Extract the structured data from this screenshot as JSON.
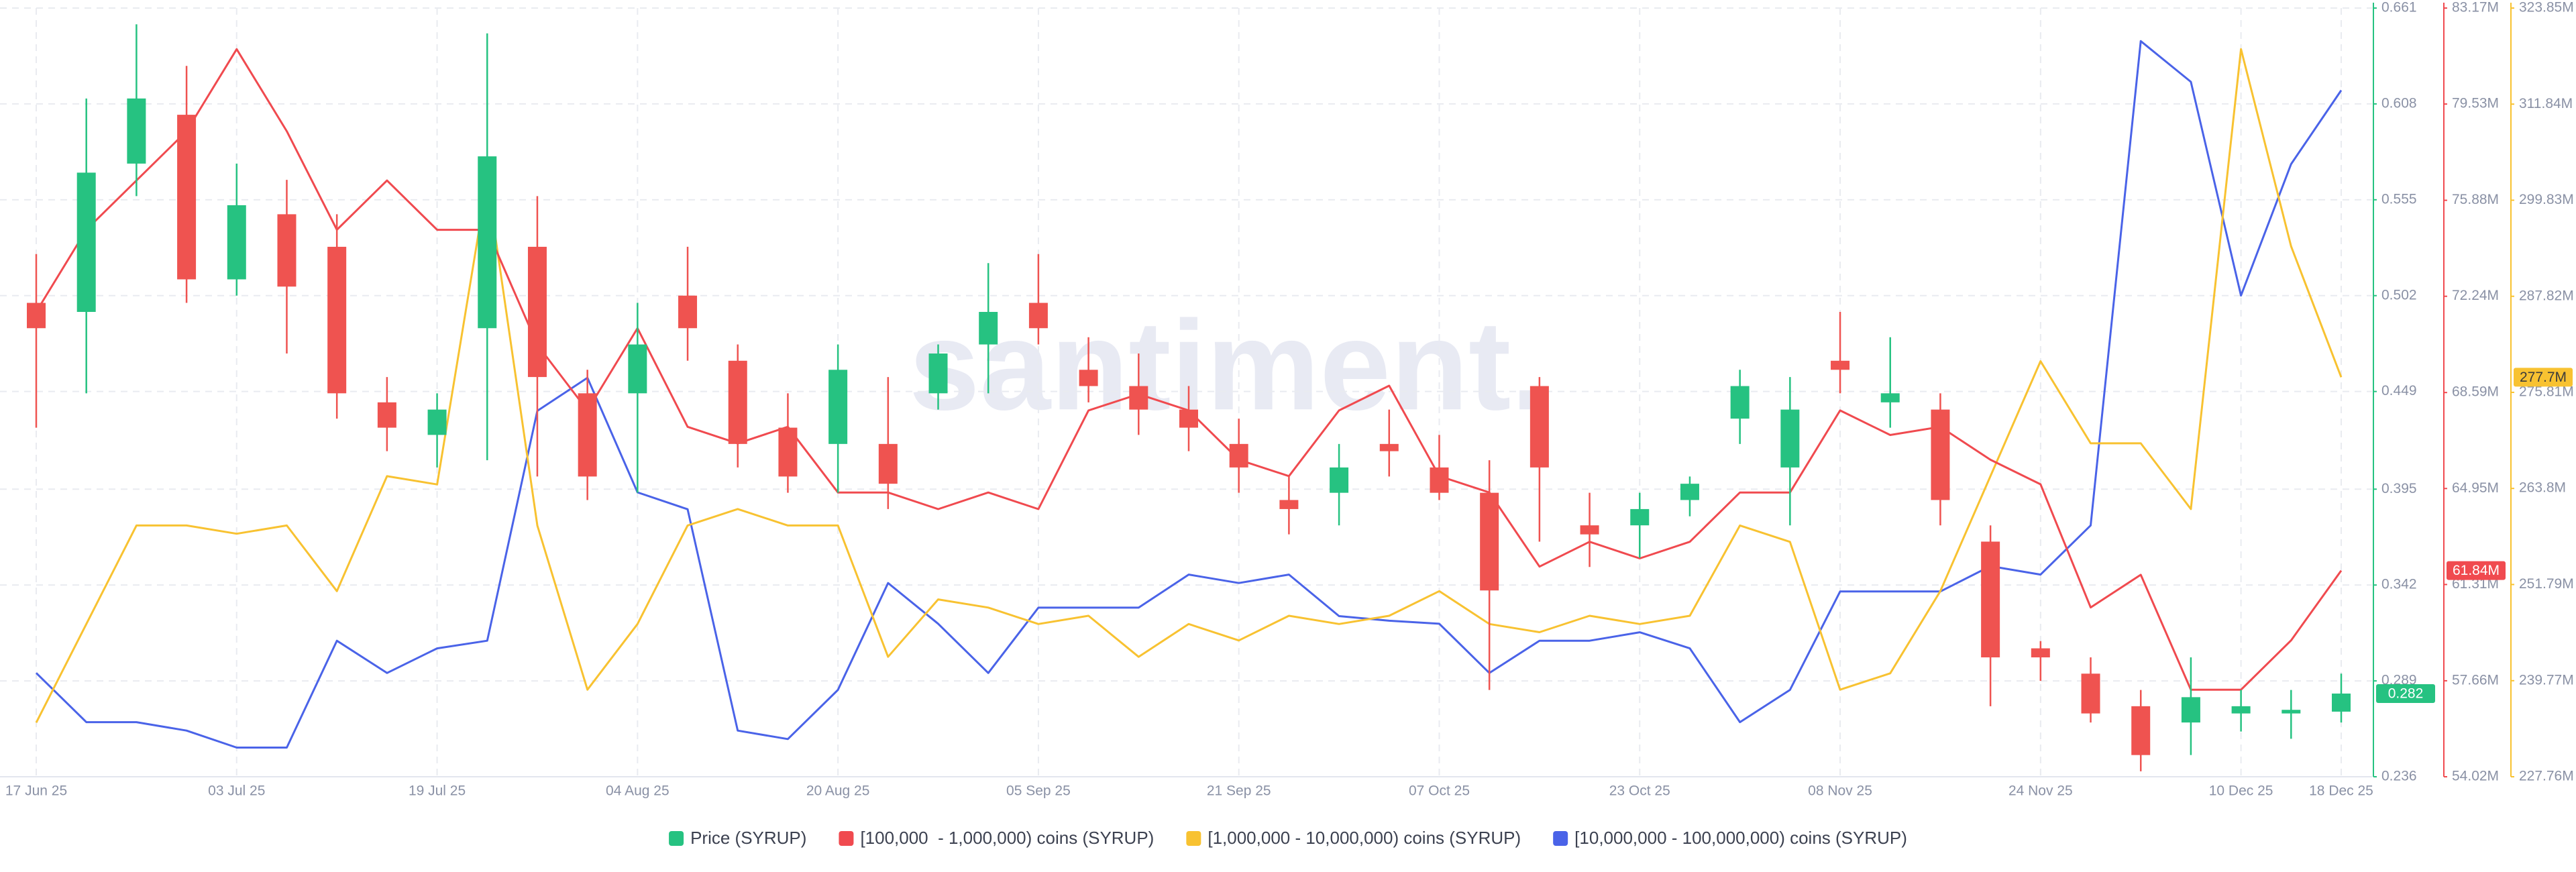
{
  "chart_data": {
    "type": "candlestick",
    "watermark": "santiment.",
    "categories": [
      "17 Jun 25",
      null,
      null,
      null,
      "03 Jul 25",
      null,
      null,
      null,
      "19 Jul 25",
      null,
      null,
      null,
      "04 Aug 25",
      null,
      null,
      null,
      "20 Aug 25",
      null,
      null,
      null,
      "05 Sep 25",
      null,
      null,
      null,
      "21 Sep 25",
      null,
      null,
      null,
      "07 Oct 25",
      null,
      null,
      null,
      "23 Oct 25",
      null,
      null,
      null,
      "08 Nov 25",
      null,
      null,
      null,
      "24 Nov 25",
      null,
      null,
      null,
      "10 Dec 25",
      null,
      "18 Dec 25"
    ],
    "ylim": [
      0.236,
      0.661
    ],
    "yticks": [
      0.236,
      0.289,
      0.342,
      0.395,
      0.449,
      0.502,
      0.555,
      0.608,
      0.661
    ],
    "y2lim": [
      54020000,
      83170000
    ],
    "y2ticks": [
      {
        "value": 54020000,
        "label": "54.02M"
      },
      {
        "value": 57660000,
        "label": "57.66M"
      },
      {
        "value": 61310000,
        "label": "61.31M"
      },
      {
        "value": 64950000,
        "label": "64.95M"
      },
      {
        "value": 68590000,
        "label": "68.59M"
      },
      {
        "value": 72240000,
        "label": "72.24M"
      },
      {
        "value": 75880000,
        "label": "75.88M"
      },
      {
        "value": 79530000,
        "label": "79.53M"
      },
      {
        "value": 83170000,
        "label": "83.17M"
      }
    ],
    "y3lim": [
      227760000,
      323850000
    ],
    "y3ticks": [
      {
        "value": 227760000,
        "label": "227.76M"
      },
      {
        "value": 239770000,
        "label": "239.77M"
      },
      {
        "value": 251790000,
        "label": "251.79M"
      },
      {
        "value": 263800000,
        "label": "263.8M"
      },
      {
        "value": 275810000,
        "label": "275.81M"
      },
      {
        "value": 287820000,
        "label": "287.82M"
      },
      {
        "value": 299830000,
        "label": "299.83M"
      },
      {
        "value": 311840000,
        "label": "311.84M"
      },
      {
        "value": 323850000,
        "label": "323.85M"
      }
    ],
    "y4lim": [
      0,
      100
    ],
    "grid": true,
    "series": [
      {
        "name": "Price (SYRUP)",
        "type": "candlestick",
        "axis": "y",
        "color": "#26c281",
        "down_color": "#ef5350",
        "current_label": "0.282",
        "open": [
          0.498,
          0.493,
          0.575,
          0.602,
          0.511,
          0.547,
          0.529,
          0.443,
          0.425,
          0.484,
          0.529,
          0.448,
          0.448,
          0.502,
          0.466,
          0.429,
          0.42,
          0.42,
          0.448,
          0.475,
          0.498,
          0.461,
          0.452,
          0.439,
          0.42,
          0.389,
          0.393,
          0.42,
          0.407,
          0.393,
          0.452,
          0.375,
          0.375,
          0.389,
          0.434,
          0.407,
          0.466,
          0.443,
          0.439,
          0.366,
          0.307,
          0.293,
          0.275,
          0.266,
          0.271,
          0.271,
          0.272
        ],
        "high": [
          0.525,
          0.611,
          0.652,
          0.629,
          0.575,
          0.566,
          0.547,
          0.457,
          0.448,
          0.647,
          0.557,
          0.461,
          0.498,
          0.529,
          0.475,
          0.448,
          0.475,
          0.457,
          0.475,
          0.52,
          0.525,
          0.479,
          0.47,
          0.452,
          0.434,
          0.402,
          0.42,
          0.439,
          0.425,
          0.411,
          0.457,
          0.393,
          0.393,
          0.402,
          0.461,
          0.457,
          0.493,
          0.479,
          0.448,
          0.375,
          0.311,
          0.302,
          0.284,
          0.302,
          0.284,
          0.284,
          0.293
        ],
        "low": [
          0.429,
          0.448,
          0.557,
          0.498,
          0.502,
          0.47,
          0.434,
          0.416,
          0.407,
          0.411,
          0.402,
          0.389,
          0.393,
          0.466,
          0.407,
          0.393,
          0.393,
          0.384,
          0.439,
          0.448,
          0.475,
          0.443,
          0.425,
          0.416,
          0.393,
          0.37,
          0.375,
          0.402,
          0.389,
          0.284,
          0.366,
          0.352,
          0.357,
          0.38,
          0.42,
          0.375,
          0.448,
          0.429,
          0.375,
          0.275,
          0.289,
          0.266,
          0.239,
          0.248,
          0.261,
          0.257,
          0.266
        ],
        "close": [
          0.484,
          0.57,
          0.611,
          0.511,
          0.552,
          0.507,
          0.448,
          0.429,
          0.439,
          0.579,
          0.457,
          0.402,
          0.475,
          0.484,
          0.42,
          0.402,
          0.461,
          0.398,
          0.47,
          0.493,
          0.484,
          0.452,
          0.439,
          0.429,
          0.407,
          0.384,
          0.407,
          0.416,
          0.393,
          0.339,
          0.407,
          0.37,
          0.384,
          0.398,
          0.452,
          0.439,
          0.461,
          0.448,
          0.389,
          0.302,
          0.302,
          0.271,
          0.248,
          0.28,
          0.275,
          0.273,
          0.282
        ]
      },
      {
        "name": "[100,000  - 1,000,000) coins (SYRUP)",
        "type": "line",
        "axis": "y2",
        "color": "#f04a4f",
        "current_label": "61.84M",
        "values": [
          71650000,
          74760000,
          76630000,
          78500000,
          81610000,
          78500000,
          74760000,
          76630000,
          74760000,
          74760000,
          70400000,
          67910000,
          71030000,
          67290000,
          66660000,
          67290000,
          64800000,
          64800000,
          64170000,
          64800000,
          64170000,
          67910000,
          68530000,
          67910000,
          66040000,
          65420000,
          67910000,
          68850000,
          65420000,
          64800000,
          61990000,
          62930000,
          62300000,
          62930000,
          64800000,
          64800000,
          67910000,
          66980000,
          67290000,
          66040000,
          65110000,
          60440000,
          61680000,
          57320000,
          57320000,
          59190000,
          61840000
        ]
      },
      {
        "name": "[1,000,000 - 10,000,000) coins (SYRUP)",
        "type": "line",
        "axis": "y3",
        "color": "#f8c231",
        "current_label": "277.7M",
        "values": [
          234530000,
          246850000,
          259170000,
          259170000,
          258140000,
          259170000,
          250960000,
          265330000,
          264300000,
          302280000,
          259170000,
          238640000,
          246850000,
          259170000,
          261220000,
          259170000,
          259170000,
          242750000,
          249930000,
          248910000,
          246850000,
          247880000,
          242750000,
          246850000,
          244800000,
          247880000,
          246850000,
          247880000,
          250960000,
          246850000,
          245830000,
          247880000,
          246850000,
          247880000,
          259170000,
          257120000,
          238640000,
          240690000,
          250960000,
          265330000,
          279700000,
          269440000,
          269440000,
          261220000,
          318710000,
          294070000,
          277700000
        ]
      },
      {
        "name": "[10,000,000 - 100,000,000) coins (SYRUP)",
        "type": "line",
        "axis": "y4",
        "color": "#4a63e8",
        "values": [
          13.5,
          7.1,
          7.1,
          6.0,
          3.8,
          3.8,
          17.7,
          13.5,
          16.7,
          17.7,
          47.6,
          51.9,
          37.0,
          34.8,
          6.0,
          4.9,
          11.3,
          25.2,
          19.9,
          13.5,
          22.0,
          22.0,
          22.0,
          26.3,
          25.2,
          26.3,
          20.9,
          20.3,
          19.9,
          13.5,
          17.7,
          17.7,
          18.8,
          16.7,
          7.1,
          11.3,
          24.1,
          24.1,
          24.1,
          27.4,
          26.3,
          32.7,
          95.7,
          90.4,
          62.6,
          79.7,
          89.3
        ]
      }
    ]
  }
}
